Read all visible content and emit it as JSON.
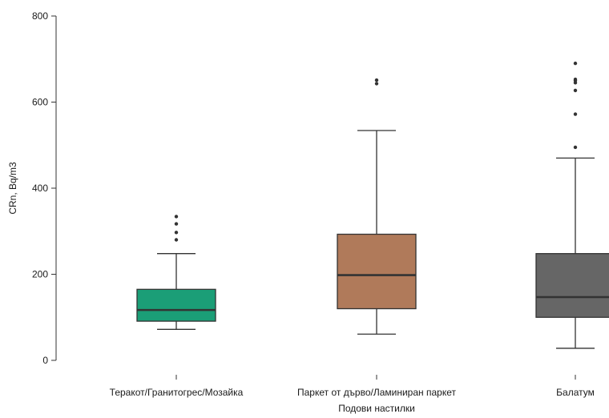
{
  "chart_data": {
    "type": "boxplot",
    "xlabel": "Подови настилки",
    "ylabel": "CRn, Bq/m3",
    "ylim": [
      0,
      800
    ],
    "yticks": [
      0,
      200,
      400,
      600,
      800
    ],
    "grid": false,
    "legend": "none",
    "categories": [
      "Теракот/Гранитогрес/Мозайка",
      "Паркет от дърво/Ламиниран паркет",
      "Балатум"
    ],
    "boxes": [
      {
        "category": "Теракот/Гранитогрес/Мозайка",
        "color": "#1b9e77",
        "whisker_low": 72,
        "q1": 91,
        "median": 117,
        "q3": 165,
        "whisker_high": 248,
        "outliers": [
          280,
          297,
          317,
          334
        ]
      },
      {
        "category": "Паркет от дърво/Ламиниран паркет",
        "color": "#b07a5a",
        "whisker_low": 61,
        "q1": 120,
        "median": 198,
        "q3": 293,
        "whisker_high": 534,
        "outliers": [
          643,
          651
        ]
      },
      {
        "category": "Балатум",
        "color": "#666666",
        "whisker_low": 28,
        "q1": 100,
        "median": 147,
        "q3": 248,
        "whisker_high": 470,
        "outliers": [
          495,
          572,
          627,
          645,
          650,
          653,
          690
        ]
      }
    ]
  }
}
